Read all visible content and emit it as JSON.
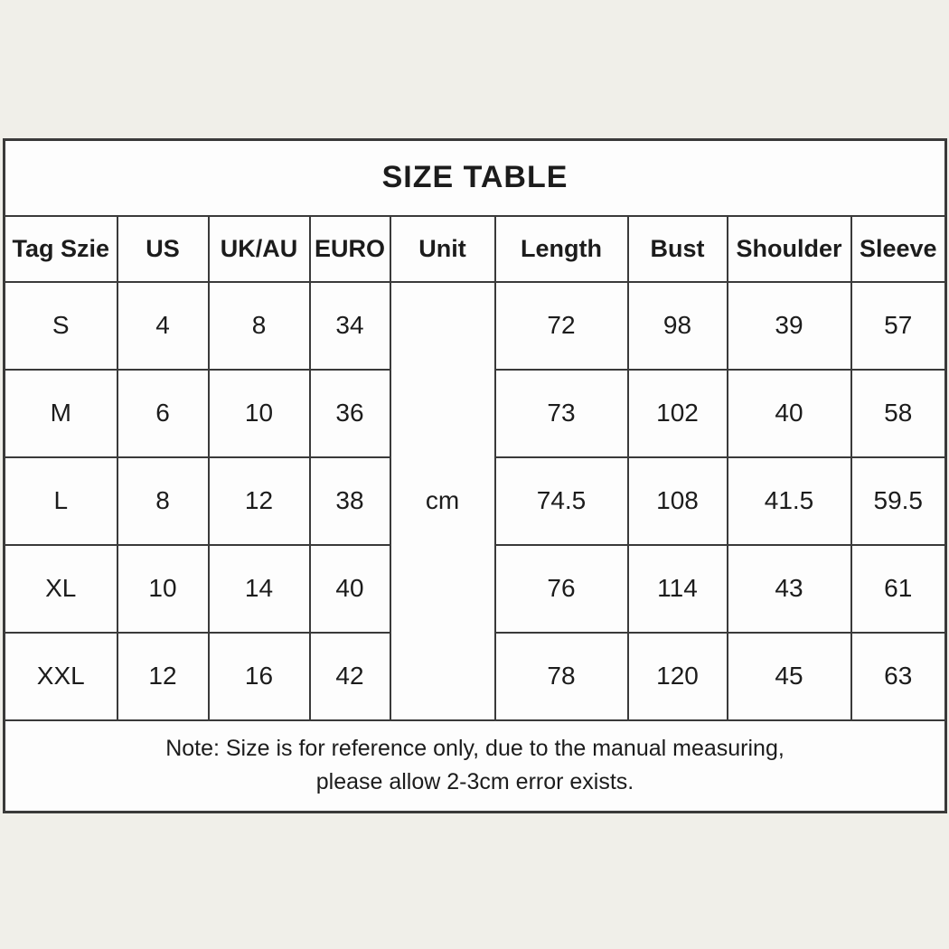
{
  "page": {
    "background_color": "#f0efe9",
    "cell_color": "#fdfdfd",
    "border_color": "#3a3a3a",
    "text_color": "#1c1c1c"
  },
  "table": {
    "title": "SIZE TABLE",
    "columns": [
      "Tag Szie",
      "US",
      "UK/AU",
      "EURO",
      "Unit",
      "Length",
      "Bust",
      "Shoulder",
      "Sleeve"
    ],
    "unit_value": "cm",
    "rows": [
      {
        "tag": "S",
        "us": "4",
        "uk_au": "8",
        "euro": "34",
        "length": "72",
        "bust": "98",
        "shoulder": "39",
        "sleeve": "57"
      },
      {
        "tag": "M",
        "us": "6",
        "uk_au": "10",
        "euro": "36",
        "length": "73",
        "bust": "102",
        "shoulder": "40",
        "sleeve": "58"
      },
      {
        "tag": "L",
        "us": "8",
        "uk_au": "12",
        "euro": "38",
        "length": "74.5",
        "bust": "108",
        "shoulder": "41.5",
        "sleeve": "59.5"
      },
      {
        "tag": "XL",
        "us": "10",
        "uk_au": "14",
        "euro": "40",
        "length": "76",
        "bust": "114",
        "shoulder": "43",
        "sleeve": "61"
      },
      {
        "tag": "XXL",
        "us": "12",
        "uk_au": "16",
        "euro": "42",
        "length": "78",
        "bust": "120",
        "shoulder": "45",
        "sleeve": "63"
      }
    ],
    "note_line1": "Note: Size is for reference only, due to the manual measuring,",
    "note_line2": "please allow 2-3cm error exists."
  }
}
